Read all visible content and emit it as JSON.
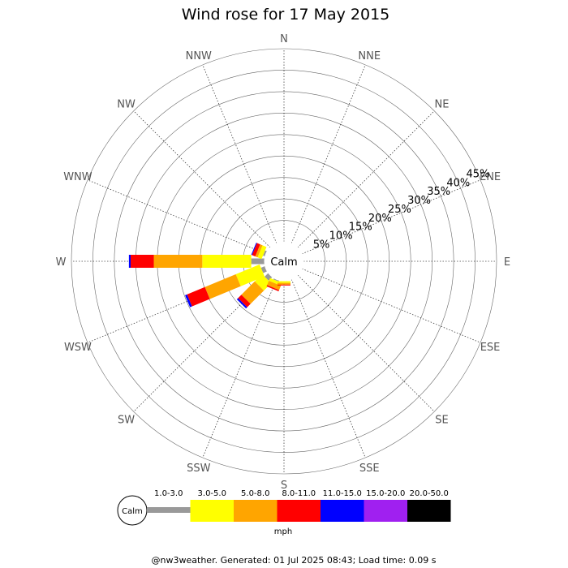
{
  "chart_data": {
    "type": "wind-rose",
    "title": "Wind rose for 17 May 2015",
    "center_label": "Calm",
    "directions": [
      "N",
      "NNE",
      "NE",
      "ENE",
      "E",
      "ESE",
      "SE",
      "SSE",
      "S",
      "SSW",
      "SW",
      "WSW",
      "W",
      "WNW",
      "NW",
      "NNW"
    ],
    "ring_labels": [
      "5%",
      "10%",
      "15%",
      "20%",
      "25%",
      "30%",
      "35%",
      "40%",
      "45%"
    ],
    "ring_values": [
      5,
      10,
      15,
      20,
      25,
      30,
      35,
      40,
      45
    ],
    "rmax": 45,
    "speed_bins": [
      {
        "label": "1.0-3.0",
        "color": "#999999"
      },
      {
        "label": "3.0-5.0",
        "color": "#ffff00"
      },
      {
        "label": "5.0-8.0",
        "color": "#ffa500"
      },
      {
        "label": "8.0-11.0",
        "color": "#ff0000"
      },
      {
        "label": "11.0-15.0",
        "color": "#0000ff"
      },
      {
        "label": "15.0-20.0",
        "color": "#a020f0"
      },
      {
        "label": "20.0-50.0",
        "color": "#000000"
      }
    ],
    "legend_calm": "Calm",
    "legend_unit": "mph",
    "series": [
      {
        "direction": "W",
        "segments": [
          3.1,
          11.4,
          11.3,
          5.4,
          0.4,
          0,
          0
        ]
      },
      {
        "direction": "WSW",
        "segments": [
          1.0,
          6.0,
          7.8,
          4.5,
          0.5,
          0,
          0
        ]
      },
      {
        "direction": "SW",
        "segments": [
          1.2,
          2.4,
          4.4,
          1.1,
          0.4,
          0,
          0
        ]
      },
      {
        "direction": "WNW",
        "segments": [
          0.5,
          1.0,
          0.6,
          0.8,
          0.2,
          0,
          0
        ]
      },
      {
        "direction": "SSW",
        "segments": [
          0.3,
          0.7,
          1.1,
          0.3,
          0,
          0,
          0
        ]
      },
      {
        "direction": "S",
        "segments": [
          0.1,
          0.4,
          0.4,
          0.2,
          0,
          0,
          0
        ]
      }
    ]
  },
  "footer": "@nw3weather. Generated: 01 Jul 2025 08:43; Load time: 0.09 s"
}
